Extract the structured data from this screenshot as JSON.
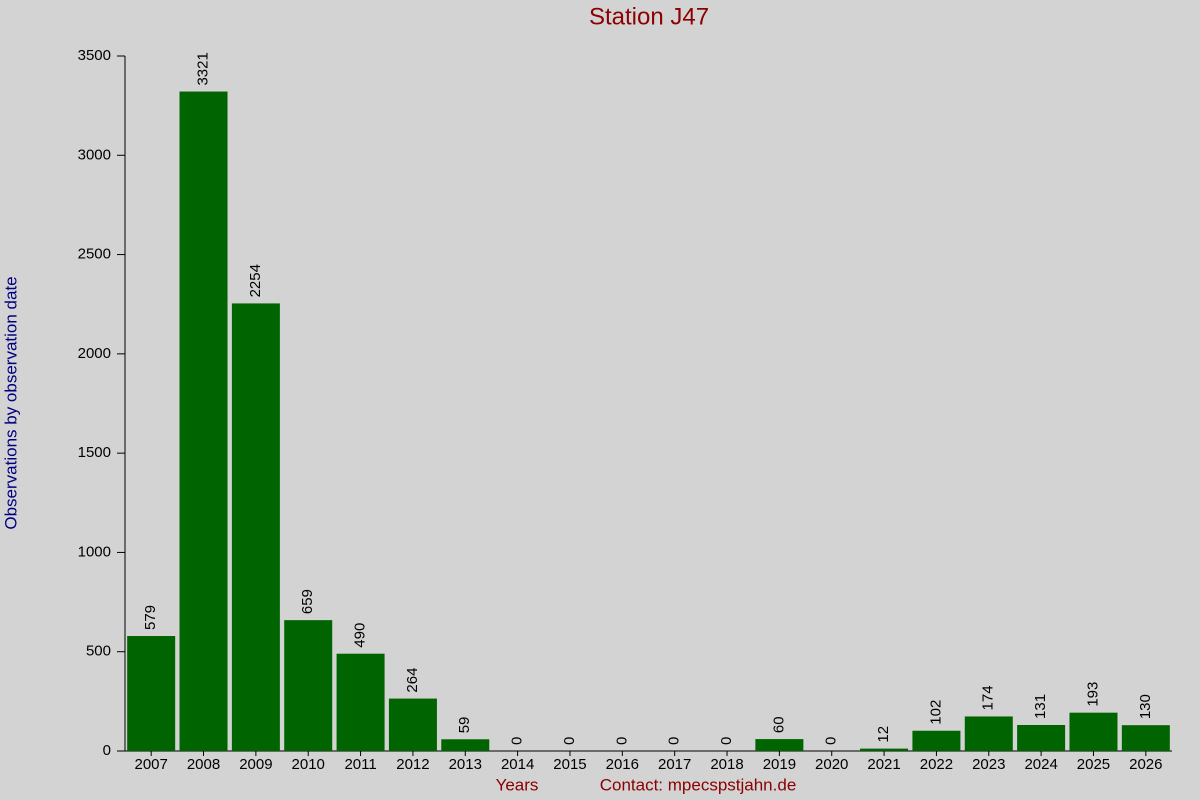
{
  "chart_data": {
    "type": "bar",
    "title": "Station J47",
    "y_label": "Observations by observation date",
    "x_label": "Years",
    "note": "Contact: mpecspstjahn.de",
    "categories": [
      "2007",
      "2008",
      "2009",
      "2010",
      "2011",
      "2012",
      "2013",
      "2014",
      "2015",
      "2016",
      "2017",
      "2018",
      "2019",
      "2020",
      "2021",
      "2022",
      "2023",
      "2024",
      "2025",
      "2026"
    ],
    "values": [
      579,
      3321,
      2254,
      659,
      490,
      264,
      59,
      0,
      0,
      0,
      0,
      0,
      60,
      0,
      12,
      102,
      174,
      131,
      193,
      130
    ],
    "color": "#006400",
    "ylim": [
      0,
      3500
    ],
    "yticks": [
      0,
      500,
      1000,
      1500,
      2000,
      2500,
      3000,
      3500
    ]
  }
}
